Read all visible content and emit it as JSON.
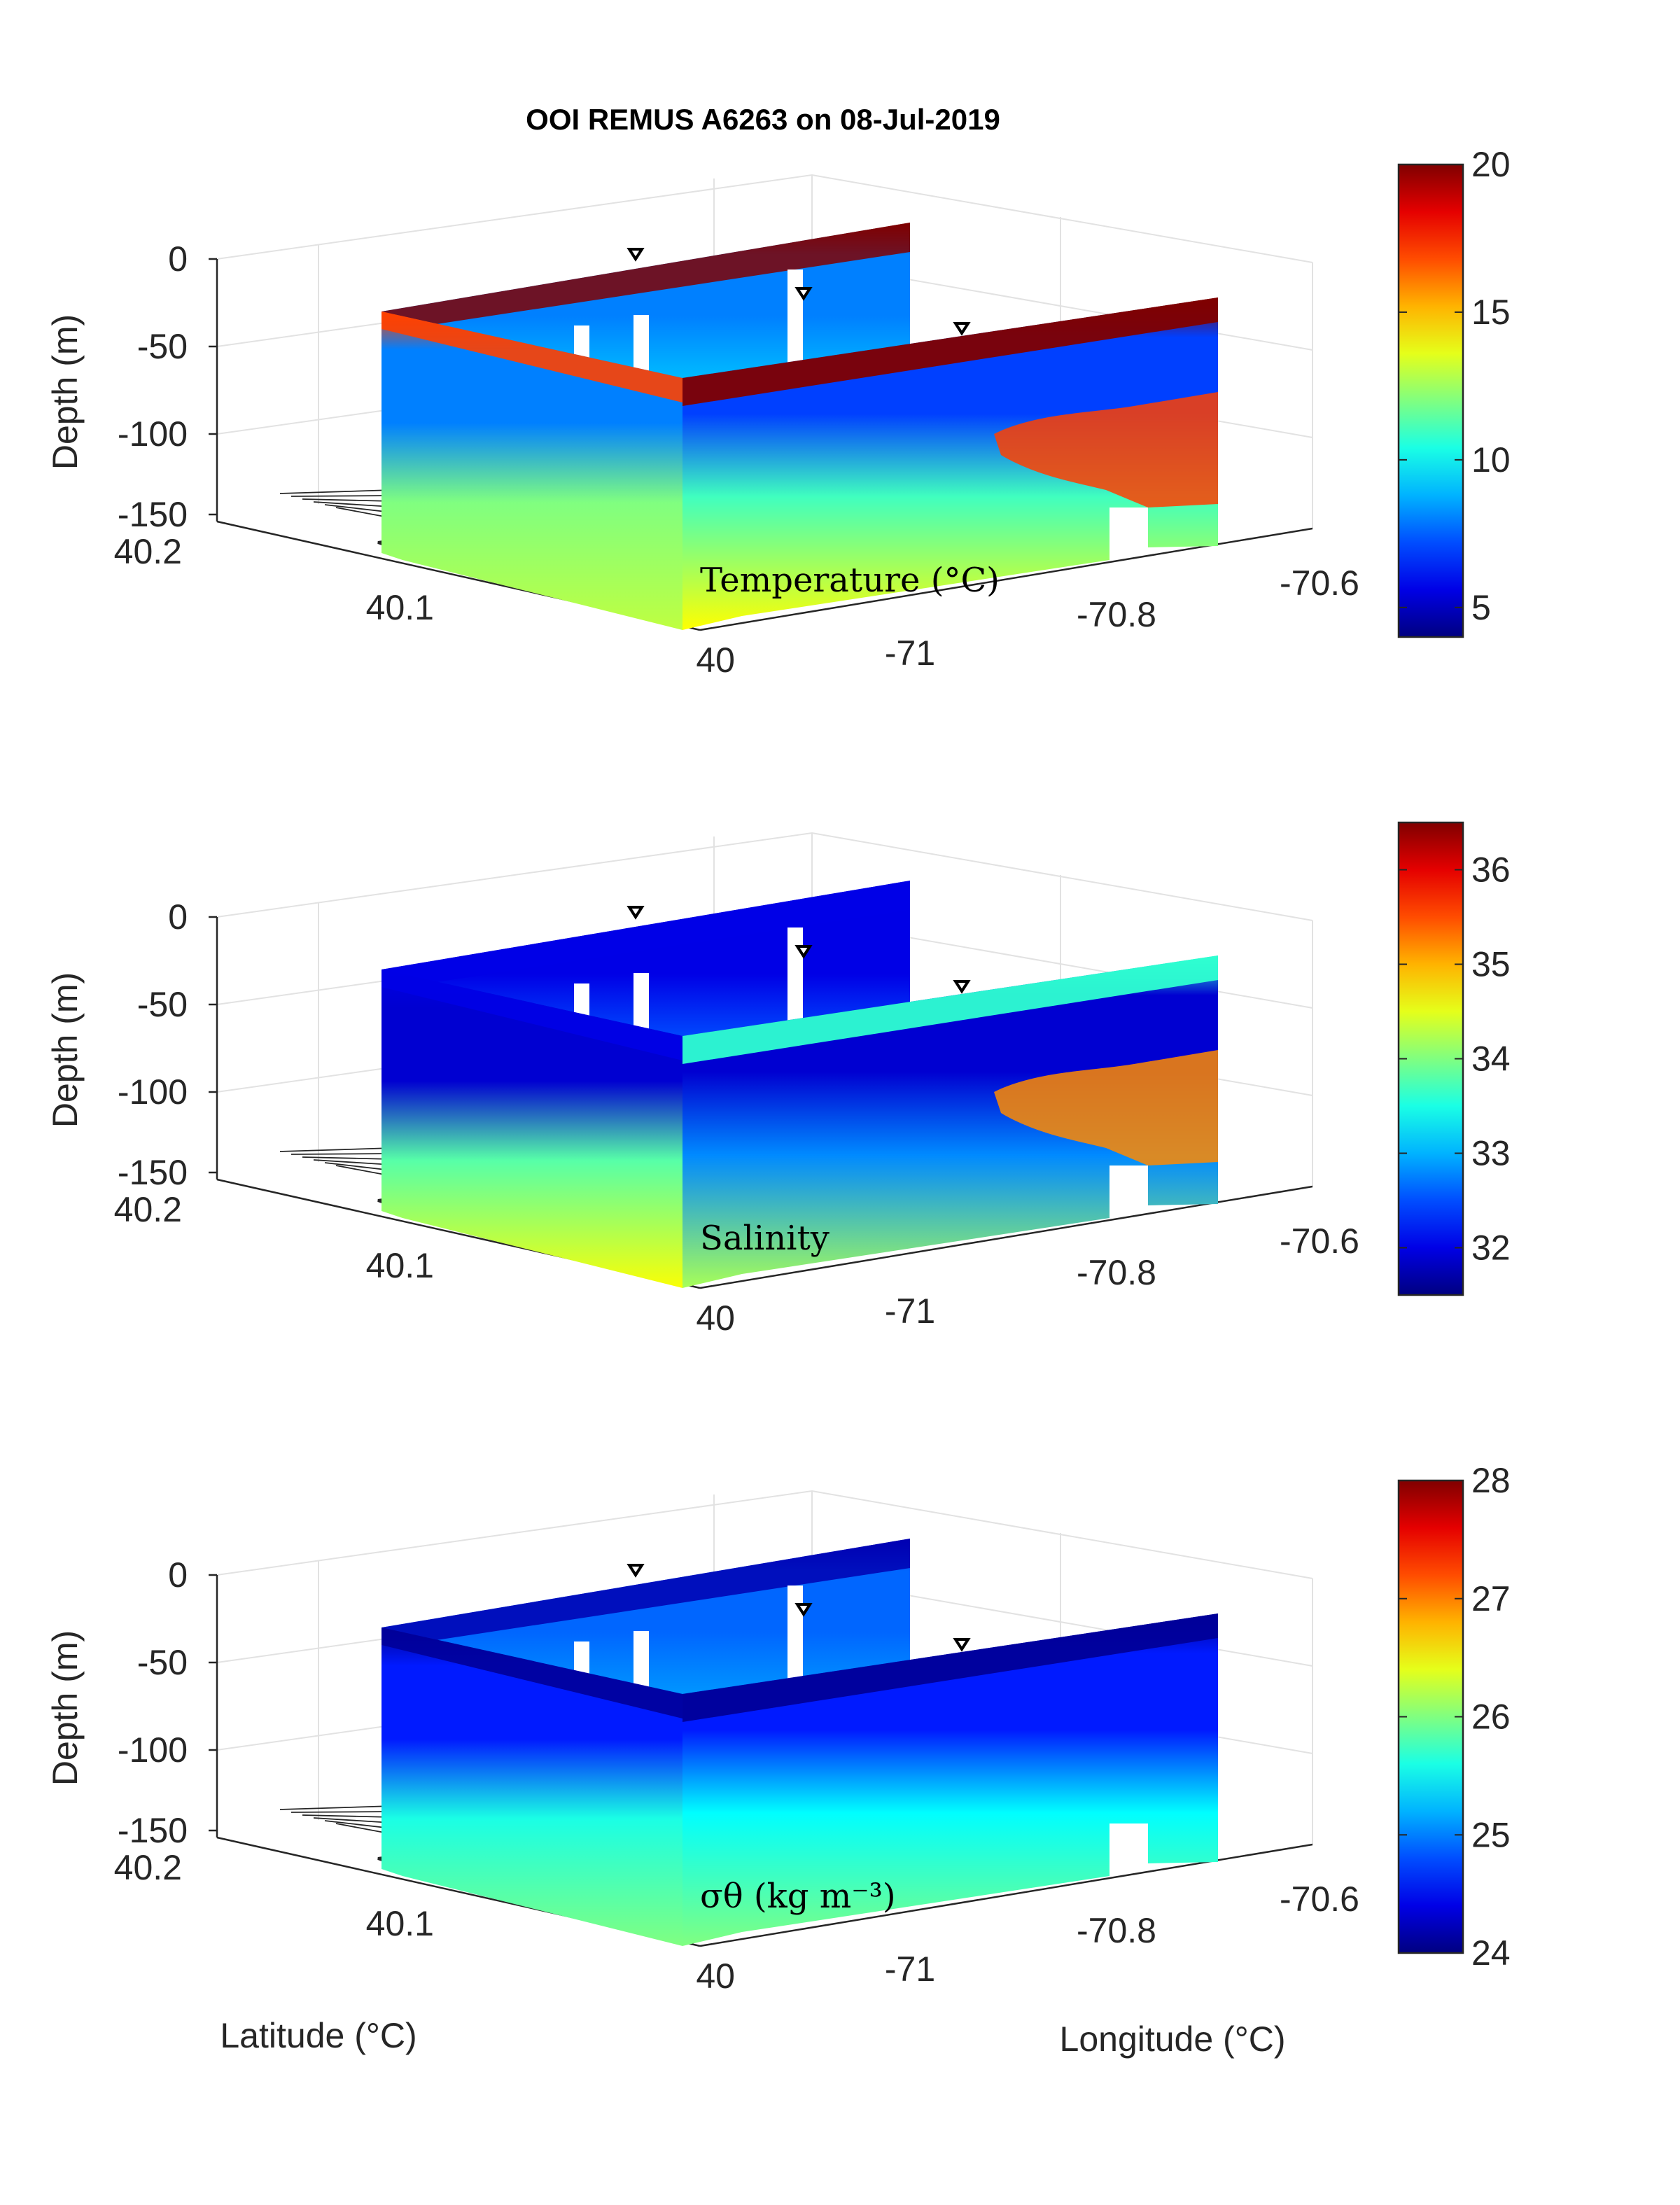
{
  "figure": {
    "title": "OOI REMUS A6263 on 08-Jul-2019",
    "shared_xlabel": "Latitude (°C)",
    "shared_ylabel": "Longitude (°C)"
  },
  "chart_data": [
    {
      "type": "heatmap",
      "variable_label": "Temperature (°C)",
      "zlabel": "Depth (m)",
      "depth_ticks": [
        0,
        -50,
        -100,
        -150
      ],
      "latitude_ticks": [
        40.2,
        40.1,
        40
      ],
      "longitude_ticks": [
        -71,
        -70.8,
        -70.6
      ],
      "colorbar": {
        "ticks": [
          5,
          10,
          15,
          20
        ],
        "range": [
          4,
          20
        ],
        "colormap": "jet"
      },
      "sections": [
        {
          "name": "far",
          "surface": 20,
          "upper": 8,
          "mid": 9,
          "deep": 9
        },
        {
          "name": "left-front",
          "surface": 17,
          "upper": 8,
          "mid": 12,
          "deep": 13
        },
        {
          "name": "right-front",
          "surface": 20,
          "upper": 7,
          "mid": 11,
          "deep": 14,
          "warm_patch": 17
        }
      ]
    },
    {
      "type": "heatmap",
      "variable_label": "Salinity",
      "zlabel": "Depth (m)",
      "depth_ticks": [
        0,
        -50,
        -100,
        -150
      ],
      "latitude_ticks": [
        40.2,
        40.1,
        40
      ],
      "longitude_ticks": [
        -71,
        -70.8,
        -70.6
      ],
      "colorbar": {
        "ticks": [
          32,
          33,
          34,
          35,
          36
        ],
        "range": [
          31.5,
          36.5
        ],
        "colormap": "jet"
      },
      "sections": [
        {
          "name": "far",
          "surface": 32,
          "upper": 32,
          "mid": 32.5,
          "deep": 32.5
        },
        {
          "name": "left-front",
          "surface": 32,
          "upper": 31.9,
          "mid": 33.8,
          "deep": 34.6
        },
        {
          "name": "right-front",
          "surface": 33.6,
          "upper": 31.9,
          "mid": 32.8,
          "deep": 34.2,
          "warm_patch": 35.2
        }
      ]
    },
    {
      "type": "heatmap",
      "variable_label": "σθ (kg m⁻³)",
      "zlabel": "Depth (m)",
      "depth_ticks": [
        0,
        -50,
        -100,
        -150
      ],
      "latitude_ticks": [
        40.2,
        40.1,
        40
      ],
      "longitude_ticks": [
        -71,
        -70.8,
        -70.6
      ],
      "colorbar": {
        "ticks": [
          24,
          25,
          26,
          27,
          28
        ],
        "range": [
          24,
          28
        ],
        "colormap": "jet"
      },
      "sections": [
        {
          "name": "far",
          "surface": 24.2,
          "upper": 24.9,
          "mid": 25.1,
          "deep": 25.1
        },
        {
          "name": "left-front",
          "surface": 24.1,
          "upper": 24.6,
          "mid": 25.6,
          "deep": 26
        },
        {
          "name": "right-front",
          "surface": 24.1,
          "upper": 24.6,
          "mid": 25.5,
          "deep": 26
        }
      ]
    }
  ]
}
